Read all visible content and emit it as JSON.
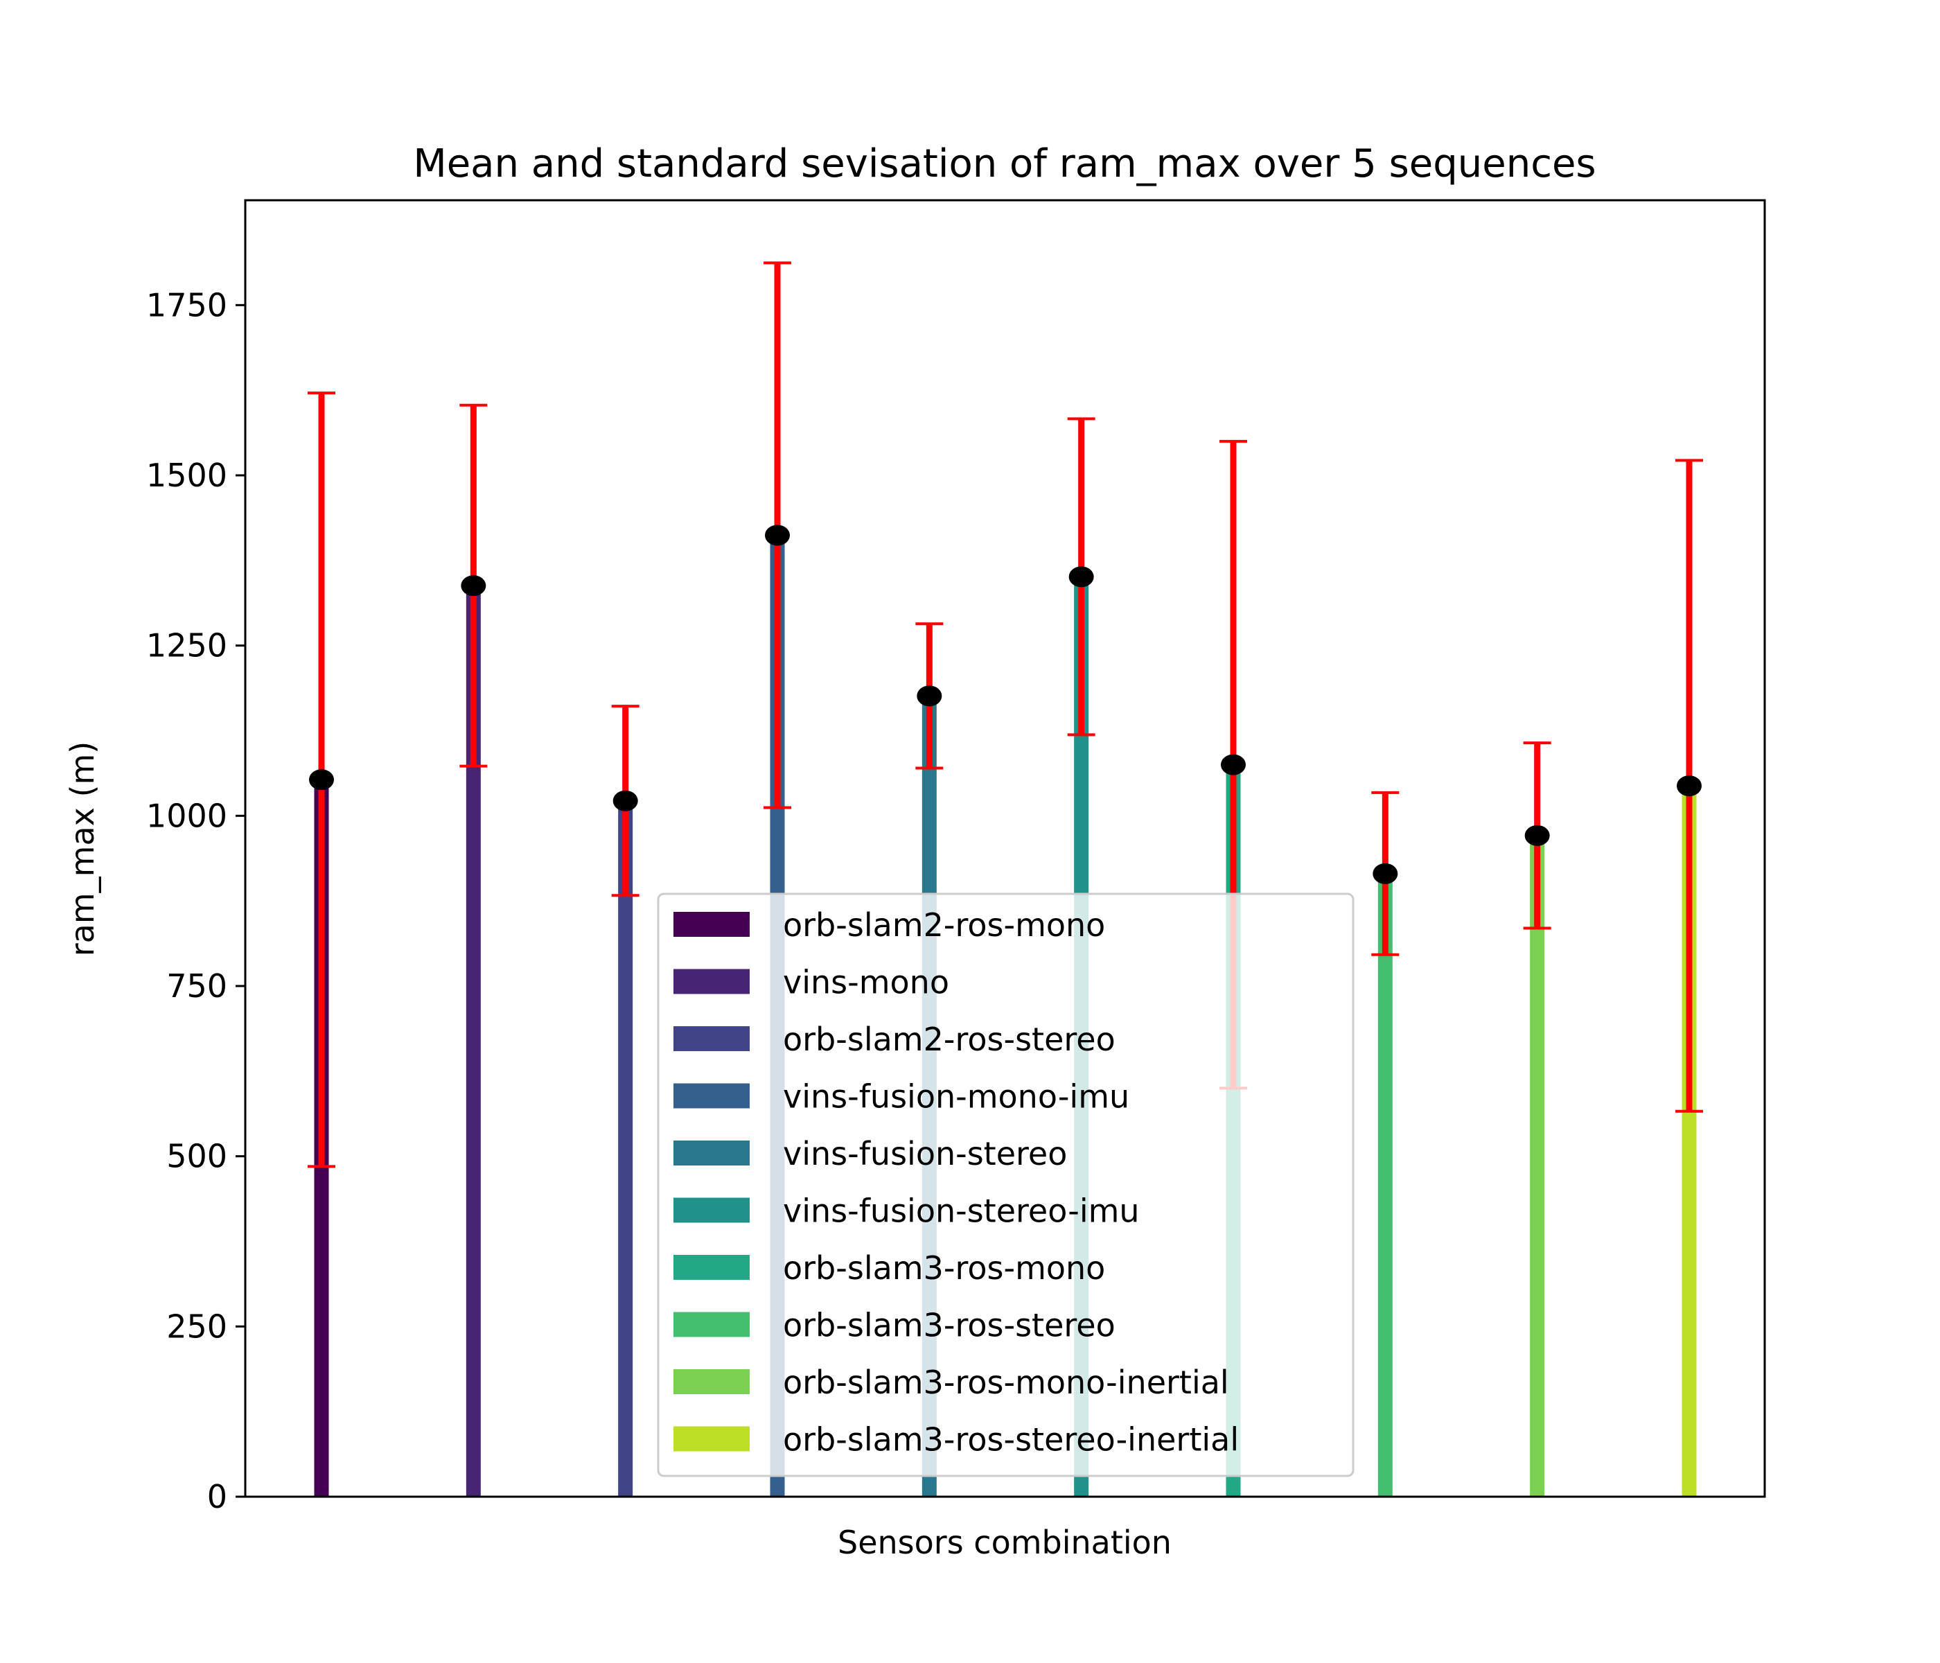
{
  "chart_data": {
    "type": "bar",
    "title": "Mean and standard sevisation of ram_max over 5 sequences",
    "xlabel": "Sensors combination",
    "ylabel": "ram_max (m)",
    "ylim": [
      0,
      1904
    ],
    "yticks": [
      0,
      250,
      500,
      750,
      1000,
      1250,
      1500,
      1750
    ],
    "ytick_labels": [
      "0",
      "250",
      "500",
      "750",
      "1000",
      "1250",
      "1500",
      "1750"
    ],
    "grid": false,
    "legend_position": "lower-center",
    "categories": [
      "orb-slam2-ros-mono",
      "vins-mono",
      "orb-slam2-ros-stereo",
      "vins-fusion-mono-imu",
      "vins-fusion-stereo",
      "vins-fusion-stereo-imu",
      "orb-slam3-ros-mono",
      "orb-slam3-ros-stereo",
      "orb-slam3-ros-mono-inertial",
      "orb-slam3-ros-stereo-inertial"
    ],
    "series": [
      {
        "name": "mean",
        "values": [
          1053,
          1338,
          1022,
          1412,
          1176,
          1351,
          1075,
          915,
          971,
          1044
        ]
      },
      {
        "name": "std",
        "values": [
          568,
          265,
          139,
          400,
          106,
          232,
          475,
          119,
          136,
          478
        ]
      }
    ],
    "colors": [
      "#440154",
      "#482475",
      "#414487",
      "#355f8d",
      "#2a788e",
      "#21918c",
      "#22a884",
      "#44bf70",
      "#7ad151",
      "#bddf26"
    ],
    "errorbar_color": "#ff0000",
    "marker_color": "#000000"
  }
}
